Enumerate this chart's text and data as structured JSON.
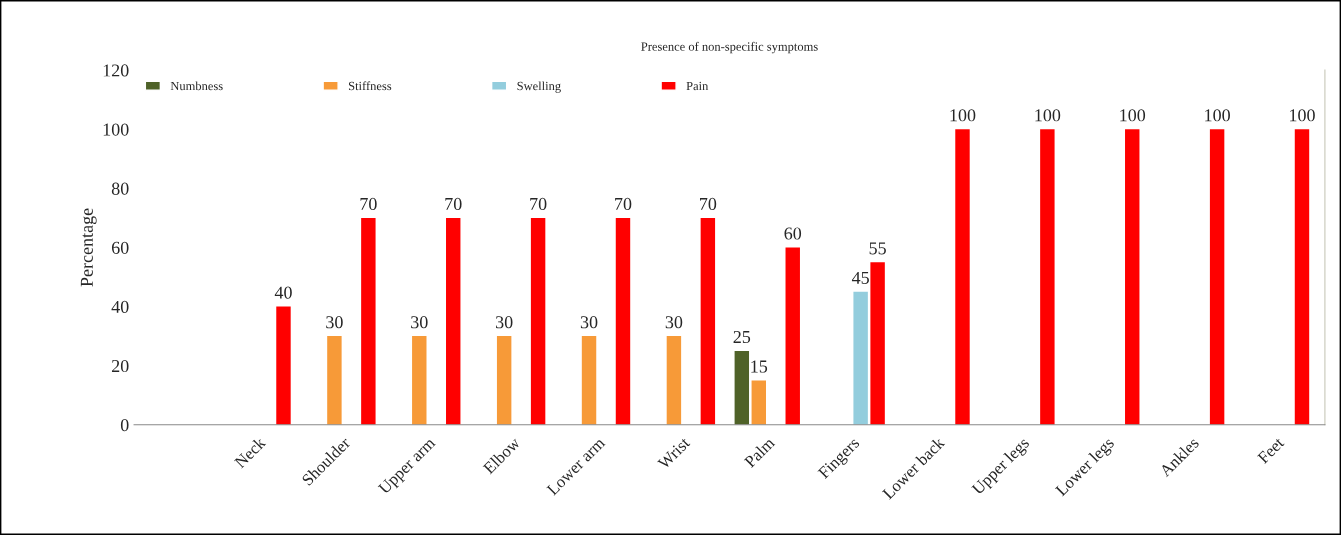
{
  "chart_data": {
    "type": "bar",
    "title": "Presence of non-specific symptoms",
    "ylabel": "Percentage",
    "categories": [
      "Neck",
      "Shoulder",
      "Upper arm",
      "Elbow",
      "Lower arm",
      "Wrist",
      "Palm",
      "Fingers",
      "Lower back",
      "Upper legs",
      "Lower legs",
      "Ankles",
      "Feet"
    ],
    "series": [
      {
        "name": "Numbness",
        "color": "#4f6228",
        "values": [
          null,
          null,
          null,
          null,
          null,
          null,
          25,
          null,
          null,
          null,
          null,
          null,
          null
        ]
      },
      {
        "name": "Stiffness",
        "color": "#f79a38",
        "values": [
          null,
          30,
          30,
          30,
          30,
          30,
          15,
          null,
          null,
          null,
          null,
          null,
          null
        ]
      },
      {
        "name": "Swelling",
        "color": "#93cddd",
        "values": [
          null,
          null,
          null,
          null,
          null,
          null,
          null,
          45,
          null,
          null,
          null,
          null,
          null
        ]
      },
      {
        "name": "Pain",
        "color": "#ff0000",
        "values": [
          40,
          70,
          70,
          70,
          70,
          70,
          60,
          55,
          100,
          100,
          100,
          100,
          100
        ]
      }
    ],
    "ylim": [
      0,
      120
    ],
    "yticks": [
      0,
      20,
      40,
      60,
      80,
      100,
      120
    ],
    "data_labels": true,
    "legend": "top left",
    "grid": false
  }
}
